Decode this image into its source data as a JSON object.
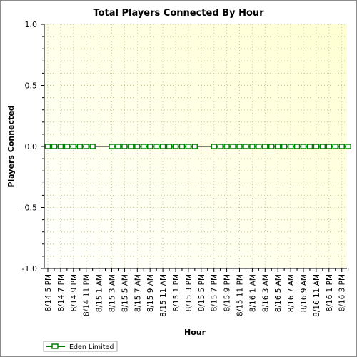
{
  "chart_data": {
    "type": "line",
    "title": "Total Players Connected By Hour",
    "xlabel": "Hour",
    "ylabel": "Players Connected",
    "ylim": [
      -1.0,
      1.0
    ],
    "yticks": [
      "1.0",
      "0.5",
      "0.0",
      "-0.5",
      "-1.0"
    ],
    "grid": true,
    "legend_position": "bottom-left",
    "x": [
      "8/14 5 PM",
      "8/14 7 PM",
      "8/14 9 PM",
      "8/14 11 PM",
      "8/15 1 AM",
      "8/15 3 AM",
      "8/15 5 AM",
      "8/15 7 AM",
      "8/15 9 AM",
      "8/15 11 AM",
      "8/15 1 PM",
      "8/15 3 PM",
      "8/15 5 PM",
      "8/15 7 PM",
      "8/15 9 PM",
      "8/15 11 PM",
      "8/16 1 AM",
      "8/16 3 AM",
      "8/16 5 AM",
      "8/16 7 AM",
      "8/16 9 AM",
      "8/16 11 AM",
      "8/16 1 PM",
      "8/16 3 PM"
    ],
    "series": [
      {
        "name": "Eden Limited",
        "color": "#008000",
        "points": [
          [
            0,
            0
          ],
          [
            0.5,
            0
          ],
          [
            1,
            0
          ],
          [
            1.5,
            0
          ],
          [
            2,
            0
          ],
          [
            2.5,
            0
          ],
          [
            3,
            0
          ],
          [
            3.5,
            0
          ],
          [
            5,
            0
          ],
          [
            5.5,
            0
          ],
          [
            6,
            0
          ],
          [
            6.5,
            0
          ],
          [
            7,
            0
          ],
          [
            7.5,
            0
          ],
          [
            8,
            0
          ],
          [
            8.5,
            0
          ],
          [
            9,
            0
          ],
          [
            9.5,
            0
          ],
          [
            10,
            0
          ],
          [
            10.5,
            0
          ],
          [
            11,
            0
          ],
          [
            11.5,
            0
          ],
          [
            13,
            0
          ],
          [
            13.5,
            0
          ],
          [
            14,
            0
          ],
          [
            14.5,
            0
          ],
          [
            15,
            0
          ],
          [
            15.5,
            0
          ],
          [
            16,
            0
          ],
          [
            16.5,
            0
          ],
          [
            17,
            0
          ],
          [
            17.5,
            0
          ],
          [
            18,
            0
          ],
          [
            18.5,
            0
          ],
          [
            19,
            0
          ],
          [
            19.5,
            0
          ],
          [
            20,
            0
          ],
          [
            20.5,
            0
          ],
          [
            21,
            0
          ],
          [
            21.5,
            0
          ],
          [
            22,
            0
          ],
          [
            22.5,
            0
          ],
          [
            23,
            0
          ],
          [
            23.5,
            0
          ]
        ]
      }
    ]
  },
  "colors": {
    "plot_bg_light": "#ffffff",
    "plot_bg_warm": "#ffffd2",
    "grid": "#c8c8a0",
    "zero_line": "#000000",
    "marker": "#008000"
  }
}
